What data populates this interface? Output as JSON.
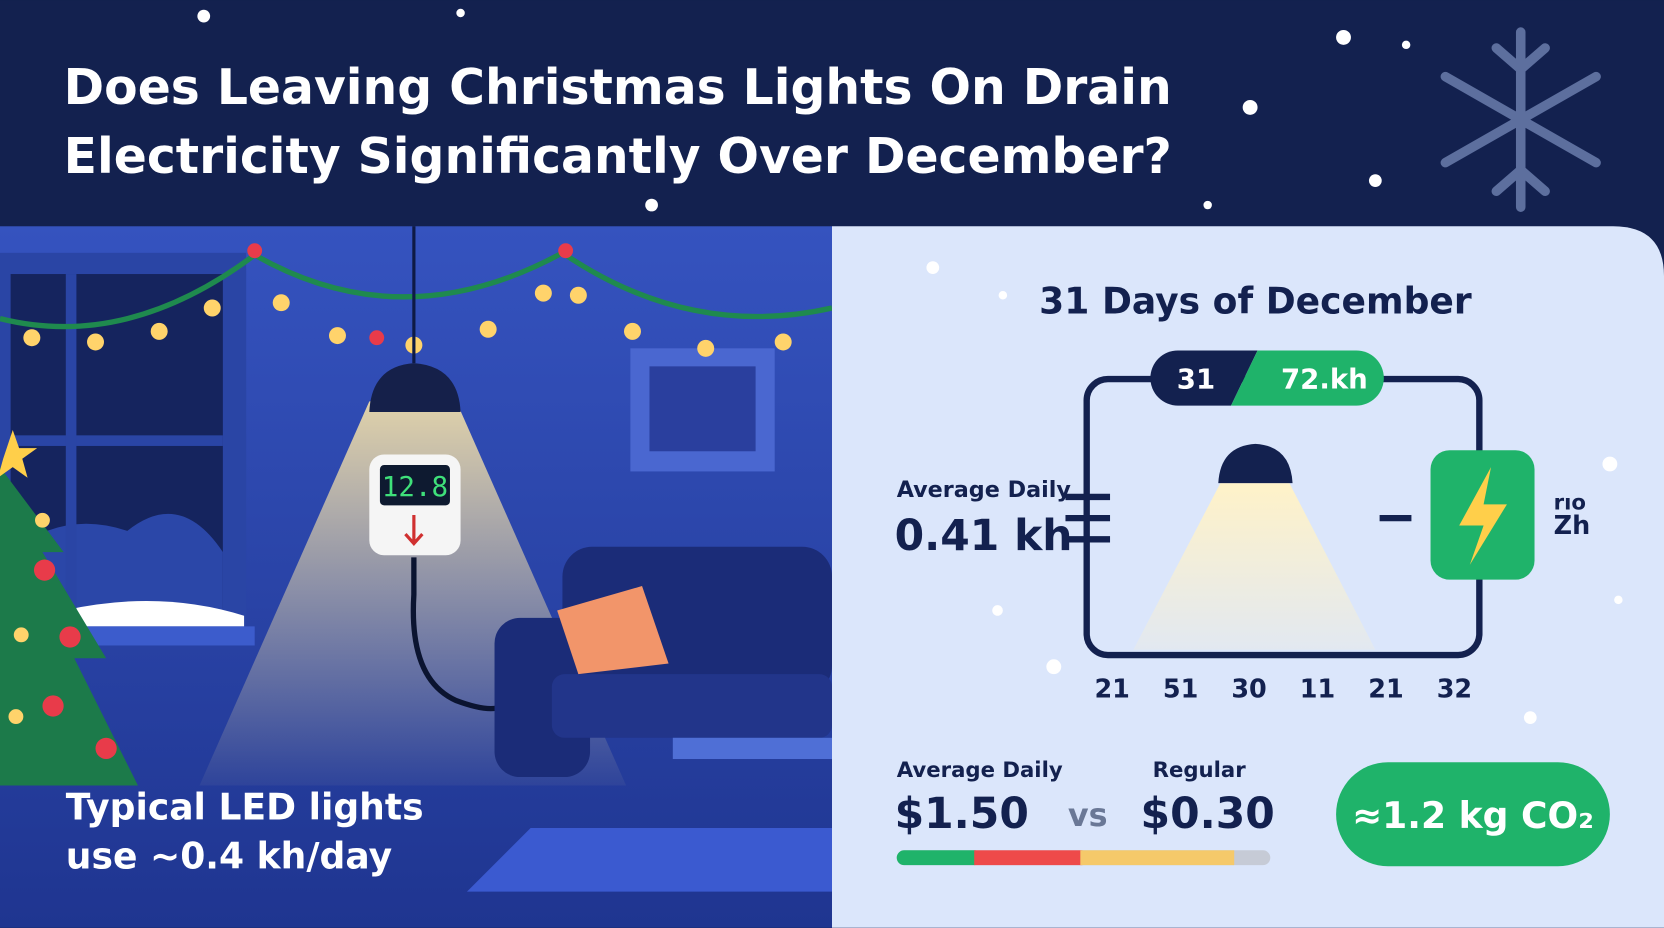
{
  "header": {
    "title": [
      "Does Leaving Christmas Lights On Drain",
      "Electricity Significantly Over December?"
    ]
  },
  "scene": {
    "meter_reading": "12.8",
    "caption": [
      "Typical LED lights",
      "use ~0.4 kh/day"
    ]
  },
  "panel": {
    "title": "31 Days of December",
    "badge": {
      "days": "31",
      "total": "72.kh"
    },
    "average": {
      "label": "Average Daily",
      "value": "0.41 kh"
    },
    "side_label": [
      "rıo",
      "Zh"
    ],
    "axis_labels": [
      "21",
      "51",
      "30",
      "11",
      "21",
      "32"
    ],
    "cost": {
      "label": "Average Daily",
      "value": "$1.50",
      "vs": "vs",
      "regular_label": "Regular",
      "regular_value": "$0.30"
    },
    "co2": "≈1.2 kg CO₂"
  }
}
